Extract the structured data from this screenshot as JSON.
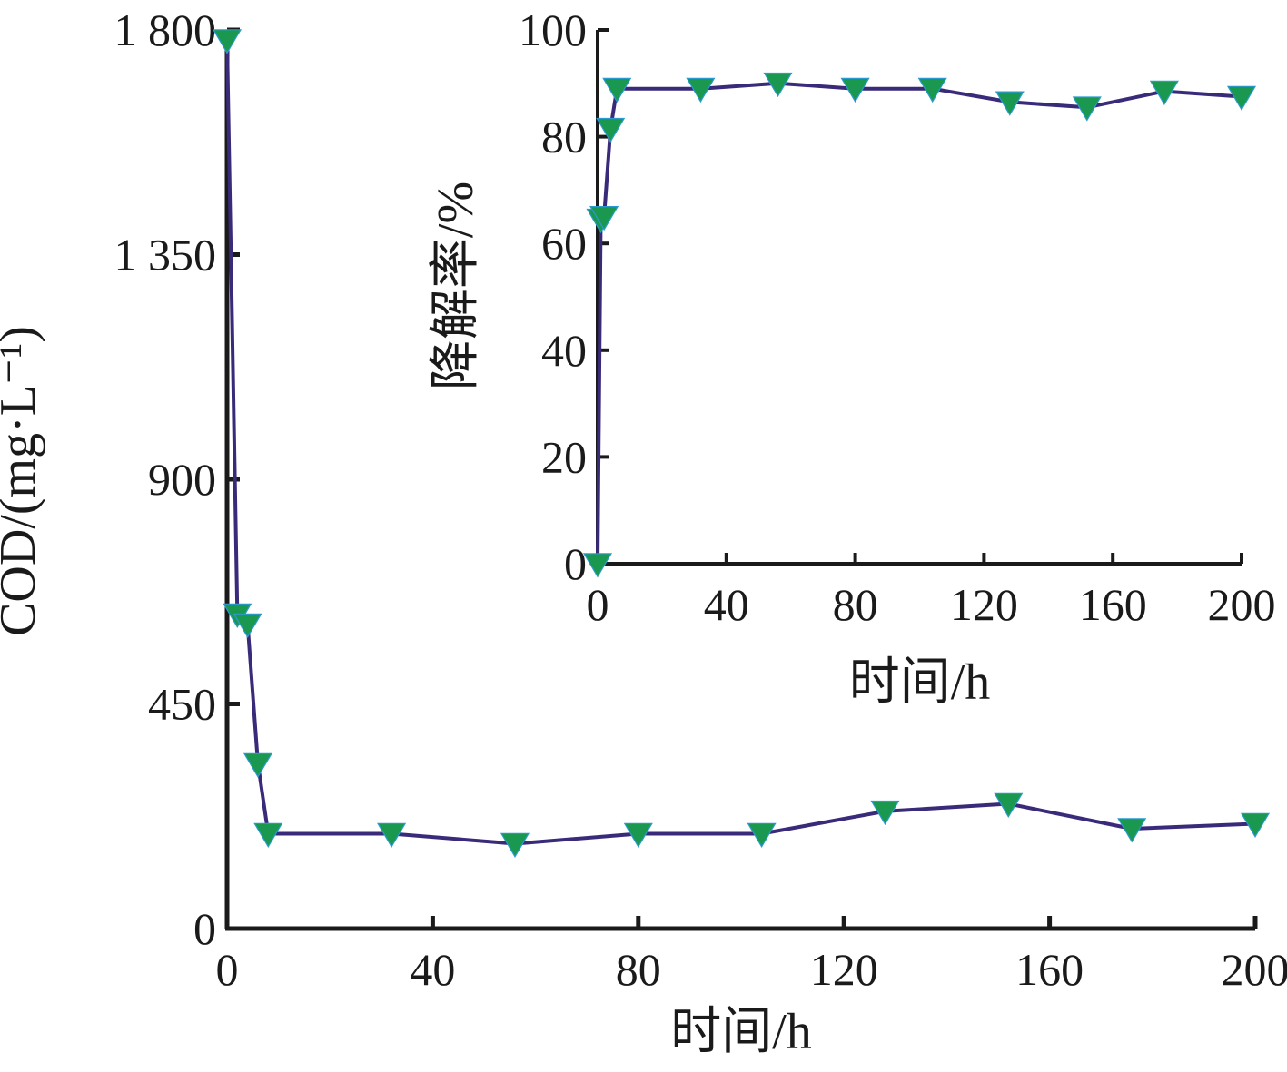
{
  "chart_data": [
    {
      "type": "line",
      "xlabel": "时间/h",
      "ylabel": "COD/(mg·L⁻¹)",
      "xlim": [
        0,
        200
      ],
      "ylim": [
        0,
        1800
      ],
      "x_ticks": [
        "0",
        "40",
        "80",
        "120",
        "160",
        "200"
      ],
      "y_ticks": [
        "0",
        "450",
        "900",
        "1 350",
        "1 800"
      ],
      "grid": false,
      "series": [
        {
          "x": [
            0,
            2,
            4,
            6,
            8,
            32,
            56,
            80,
            104,
            128,
            152,
            176,
            200
          ],
          "y": [
            1780,
            630,
            610,
            330,
            190,
            190,
            170,
            190,
            190,
            235,
            250,
            200,
            210
          ],
          "line_color": "#3a2a7a",
          "marker": "triangle-down",
          "marker_color": "#1a9850"
        }
      ]
    },
    {
      "type": "line",
      "xlabel": "时间/h",
      "ylabel": "降解率/%",
      "xlim": [
        0,
        200
      ],
      "ylim": [
        0,
        100
      ],
      "x_ticks": [
        "0",
        "40",
        "80",
        "120",
        "160",
        "200"
      ],
      "y_ticks": [
        "0",
        "20",
        "40",
        "60",
        "80",
        "100"
      ],
      "grid": false,
      "series": [
        {
          "x": [
            0,
            1,
            2,
            4,
            6,
            32,
            56,
            80,
            104,
            128,
            152,
            176,
            200
          ],
          "y": [
            0,
            64.5,
            65,
            81.5,
            89,
            89,
            90,
            89,
            89,
            86.5,
            85.5,
            88.5,
            87.5
          ],
          "line_color": "#3a2a7a",
          "marker": "triangle-down",
          "marker_color": "#1a9850"
        }
      ]
    }
  ]
}
